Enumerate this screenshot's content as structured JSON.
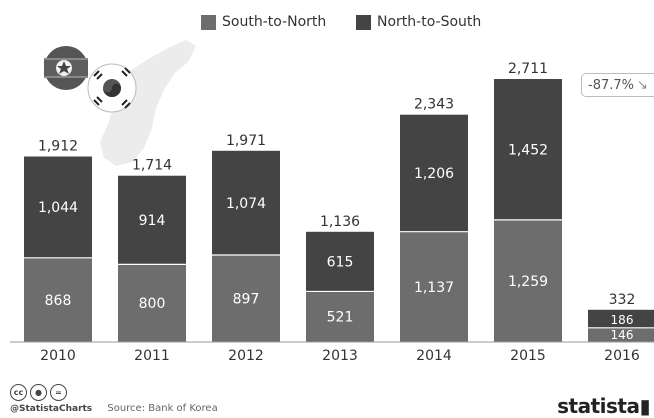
{
  "chart_data": {
    "type": "bar",
    "stacked": true,
    "categories": [
      "2010",
      "2011",
      "2012",
      "2013",
      "2014",
      "2015",
      "2016"
    ],
    "series": [
      {
        "name": "South-to-North",
        "values": [
          868,
          800,
          897,
          521,
          1137,
          1259,
          146
        ],
        "color": "#6d6d6d"
      },
      {
        "name": "North-to-South",
        "values": [
          1044,
          914,
          1074,
          615,
          1206,
          1452,
          186
        ],
        "color": "#444444"
      }
    ],
    "totals": [
      1912,
      1714,
      1971,
      1136,
      2343,
      2711,
      332
    ],
    "total_labels": [
      "1,912",
      "1,714",
      "1,971",
      "1,136",
      "2,343",
      "2,711",
      "332"
    ],
    "series_labels": [
      [
        "868",
        "800",
        "897",
        "521",
        "1,137",
        "1,259",
        "146"
      ],
      [
        "1,044",
        "914",
        "1,074",
        "615",
        "1,206",
        "1,452",
        "186"
      ]
    ],
    "ylim": [
      0,
      2711
    ],
    "grid": false,
    "legend": "top-center",
    "title": "",
    "xlabel": "",
    "ylabel": ""
  },
  "annotation": {
    "text": "-87.7%",
    "icon": "arrow-down-right-icon"
  },
  "footer": {
    "handle": "@StatistaCharts",
    "source": "Source: Bank of Korea",
    "license_icons": [
      "cc-icon",
      "by-icon",
      "nd-icon"
    ]
  },
  "brand": {
    "text": "statista"
  },
  "illustration": {
    "icons": [
      "north-korea-flag-icon",
      "south-korea-flag-icon",
      "korean-peninsula-map-icon"
    ]
  },
  "colors": {
    "south_to_north": "#6d6d6d",
    "north_to_south": "#444444",
    "axis": "#999999"
  }
}
